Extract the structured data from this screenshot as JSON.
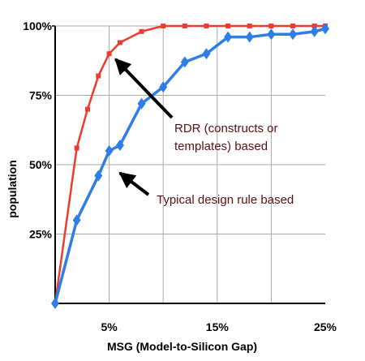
{
  "chart_data": {
    "type": "line",
    "title": "",
    "xlabel": "MSG (Model-to-Silicon Gap)",
    "ylabel": "population",
    "xlim": [
      0,
      25
    ],
    "ylim": [
      0,
      100
    ],
    "x_ticks": [
      {
        "value": 5,
        "label": "5%"
      },
      {
        "value": 15,
        "label": "15%"
      },
      {
        "value": 25,
        "label": "25%"
      }
    ],
    "y_ticks": [
      {
        "value": 25,
        "label": "25%"
      },
      {
        "value": 50,
        "label": "50%"
      },
      {
        "value": 75,
        "label": "75%"
      },
      {
        "value": 100,
        "label": "100%"
      }
    ],
    "grid": "horizontal",
    "series": [
      {
        "color": "#ee3b2c",
        "marker": "square",
        "x": [
          0,
          2,
          3,
          4,
          5,
          6,
          8,
          10,
          12,
          14,
          16,
          18,
          20,
          22,
          24,
          25
        ],
        "y": [
          0,
          56,
          70,
          82,
          90,
          94,
          98,
          100,
          100,
          100,
          100,
          100,
          100,
          100,
          100,
          100
        ]
      },
      {
        "color": "#2f7ee8",
        "marker": "diamond",
        "x": [
          0,
          2,
          4,
          5,
          6,
          8,
          10,
          12,
          14,
          16,
          18,
          20,
          22,
          24,
          25
        ],
        "y": [
          0,
          30,
          46,
          55,
          57,
          72,
          78,
          87,
          90,
          96,
          96,
          97,
          97,
          98,
          99
        ]
      }
    ],
    "annotations": [
      {
        "lines": [
          "RDR (constructs or",
          "templates) based"
        ],
        "target": {
          "x": 5.6,
          "y": 88
        }
      },
      {
        "lines": [
          "Typical design rule based"
        ],
        "target": {
          "x": 6.0,
          "y": 47
        }
      }
    ]
  }
}
